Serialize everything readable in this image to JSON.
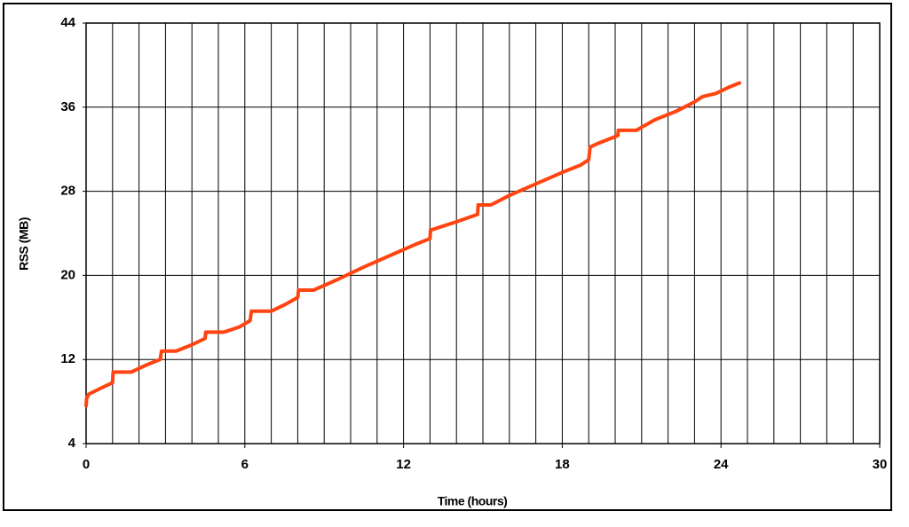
{
  "chart_data": {
    "type": "line",
    "x_label": "Time (hours)",
    "y_label": "RSS (MB)",
    "xlim": [
      0,
      30
    ],
    "ylim": [
      4,
      44
    ],
    "xticks": [
      0,
      6,
      12,
      18,
      24,
      30
    ],
    "yticks": [
      4,
      12,
      20,
      28,
      36,
      44
    ],
    "grid": true,
    "xgrid_interval": 1,
    "series": [
      {
        "color": "#ff4411",
        "x": [
          0,
          0.02,
          0.1,
          0.5,
          1.0,
          1.02,
          1.7,
          2.3,
          2.8,
          2.85,
          3.4,
          4.0,
          4.5,
          4.52,
          5.2,
          5.8,
          6.2,
          6.25,
          7.0,
          7.5,
          8.0,
          8.03,
          8.6,
          9.5,
          10.5,
          11.5,
          12.5,
          13.0,
          13.02,
          14.0,
          14.8,
          14.82,
          15.3,
          16.0,
          17.0,
          18.0,
          18.7,
          19.0,
          19.05,
          19.3,
          19.8,
          20.1,
          20.12,
          20.8,
          21.5,
          22.3,
          23.0,
          23.3,
          23.8,
          24.3,
          24.7
        ],
        "values": [
          7.6,
          8.3,
          8.7,
          9.2,
          9.8,
          10.8,
          10.8,
          11.5,
          12.0,
          12.8,
          12.8,
          13.4,
          14.0,
          14.6,
          14.6,
          15.1,
          15.7,
          16.6,
          16.6,
          17.2,
          17.9,
          18.6,
          18.6,
          19.6,
          20.8,
          21.9,
          23.0,
          23.5,
          24.3,
          25.1,
          25.8,
          26.7,
          26.7,
          27.6,
          28.7,
          29.8,
          30.5,
          31.0,
          32.2,
          32.5,
          33.0,
          33.3,
          33.8,
          33.8,
          34.8,
          35.6,
          36.5,
          37.0,
          37.3,
          37.9,
          38.3
        ]
      }
    ]
  }
}
